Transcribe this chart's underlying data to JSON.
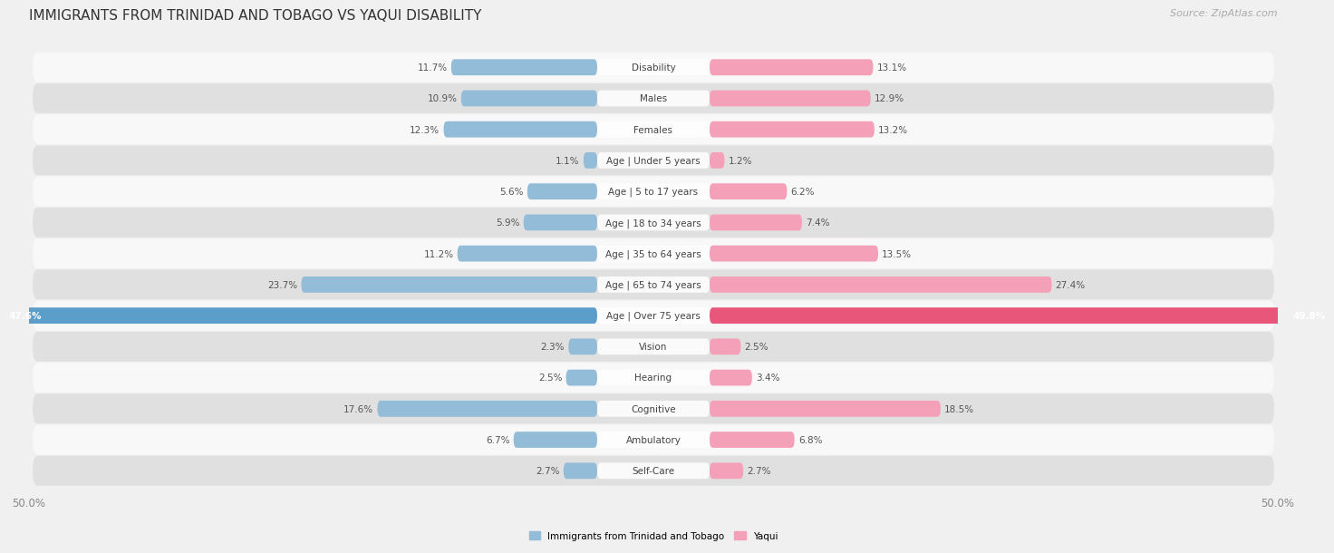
{
  "title": "IMMIGRANTS FROM TRINIDAD AND TOBAGO VS YAQUI DISABILITY",
  "source": "Source: ZipAtlas.com",
  "categories": [
    "Disability",
    "Males",
    "Females",
    "Age | Under 5 years",
    "Age | 5 to 17 years",
    "Age | 18 to 34 years",
    "Age | 35 to 64 years",
    "Age | 65 to 74 years",
    "Age | Over 75 years",
    "Vision",
    "Hearing",
    "Cognitive",
    "Ambulatory",
    "Self-Care"
  ],
  "left_values": [
    11.7,
    10.9,
    12.3,
    1.1,
    5.6,
    5.9,
    11.2,
    23.7,
    47.6,
    2.3,
    2.5,
    17.6,
    6.7,
    2.7
  ],
  "right_values": [
    13.1,
    12.9,
    13.2,
    1.2,
    6.2,
    7.4,
    13.5,
    27.4,
    49.8,
    2.5,
    3.4,
    18.5,
    6.8,
    2.7
  ],
  "left_color": "#92bcd8",
  "right_color": "#f4a0b8",
  "left_color_highlight": "#5b9ec9",
  "right_color_highlight": "#e8567a",
  "left_label": "Immigrants from Trinidad and Tobago",
  "right_label": "Yaqui",
  "max_value": 50.0,
  "background_color": "#f0f0f0",
  "row_bg_color": "#e0e0e0",
  "row_white_color": "#f8f8f8",
  "title_fontsize": 11,
  "source_fontsize": 8,
  "axis_fontsize": 8.5,
  "label_fontsize": 7.5,
  "value_fontsize": 7.5
}
